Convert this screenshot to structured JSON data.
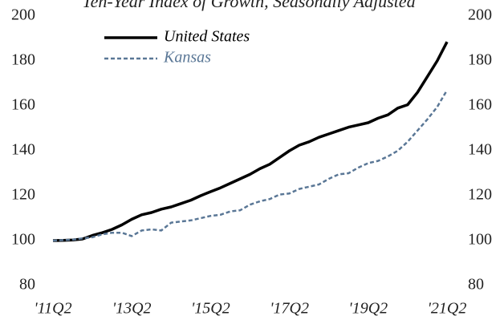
{
  "chart_data": {
    "type": "line",
    "title": "Ten-Year Index of Growth, Seasonally Adjusted",
    "categories": [
      "'11Q2",
      null,
      null,
      null,
      null,
      null,
      null,
      null,
      "'13Q2",
      null,
      null,
      null,
      null,
      null,
      null,
      null,
      "'15Q2",
      null,
      null,
      null,
      null,
      null,
      null,
      null,
      "'17Q2",
      null,
      null,
      null,
      null,
      null,
      null,
      null,
      "'19Q2",
      null,
      null,
      null,
      null,
      null,
      null,
      null,
      "'21Q2"
    ],
    "series": [
      {
        "name": "United States",
        "color": "#000000",
        "dash": false,
        "values": [
          100,
          100.1,
          100.3,
          100.7,
          102.3,
          103.5,
          105,
          107,
          109.5,
          111.5,
          112.5,
          114,
          115,
          116.5,
          118,
          120,
          121.8,
          123.5,
          125.5,
          127.5,
          129.5,
          132,
          134,
          137,
          140,
          142.5,
          144,
          146,
          147.5,
          149,
          150.5,
          151.5,
          152.5,
          154.5,
          156,
          159,
          160.5,
          166,
          173,
          180,
          188.5
        ]
      },
      {
        "name": "Kansas",
        "color": "#5a7796",
        "dash": true,
        "values": [
          100,
          100.2,
          100.4,
          101,
          101.5,
          102.8,
          103.5,
          103.5,
          102,
          104.5,
          105,
          104.5,
          108,
          108.5,
          109,
          110,
          111,
          111.5,
          113,
          113.5,
          116,
          117.5,
          118.5,
          120.5,
          121,
          123,
          124,
          125,
          127.5,
          129.5,
          130,
          132.5,
          134.5,
          135.5,
          137.5,
          140,
          144,
          149,
          154,
          159.5,
          167
        ]
      }
    ],
    "ylim": [
      80,
      200
    ],
    "yticks": [
      80,
      100,
      120,
      140,
      160,
      180,
      200
    ],
    "y2lim": [
      80,
      200
    ],
    "y2ticks": [
      80,
      100,
      120,
      140,
      160,
      180,
      200
    ],
    "grid": false,
    "legend": "upper left"
  }
}
